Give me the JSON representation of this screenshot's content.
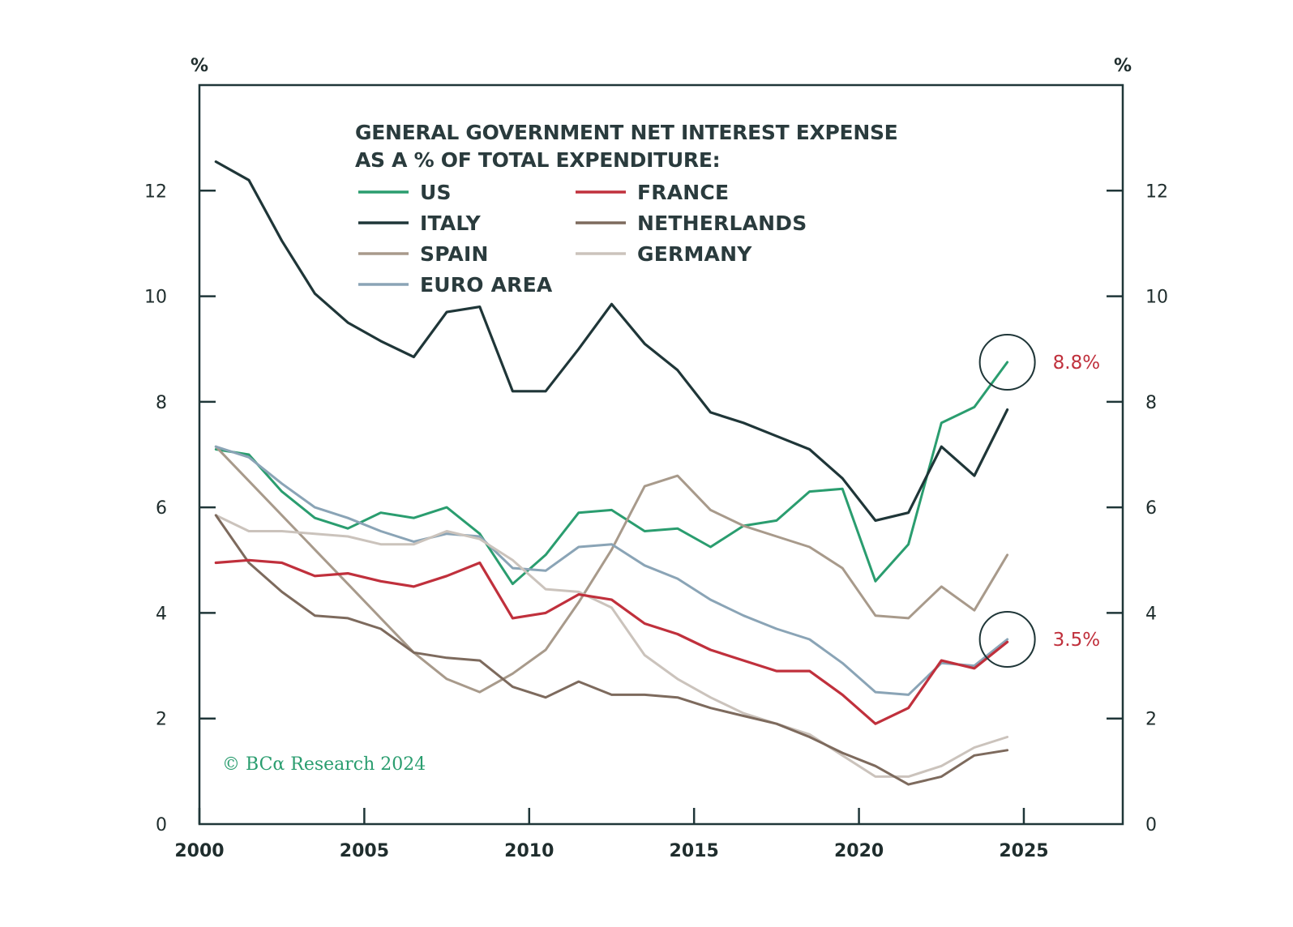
{
  "chart_data": {
    "type": "line",
    "title": [
      "GENERAL GOVERNMENT NET INTEREST EXPENSE",
      "AS A % OF TOTAL EXPENDITURE:"
    ],
    "ylabel_left": "%",
    "ylabel_right": "%",
    "xlim": [
      2000,
      2028
    ],
    "ylim": [
      0,
      14
    ],
    "xticks": [
      2000,
      2005,
      2010,
      2015,
      2020,
      2025
    ],
    "yticks": [
      0,
      2,
      4,
      6,
      8,
      10,
      12
    ],
    "x": [
      2000.5,
      2001.5,
      2002.5,
      2003.5,
      2004.5,
      2005.5,
      2006.5,
      2007.5,
      2008.5,
      2009.5,
      2010.5,
      2011.5,
      2012.5,
      2013.5,
      2014.5,
      2015.5,
      2016.5,
      2017.5,
      2018.5,
      2019.5,
      2020.5,
      2021.5,
      2022.5,
      2023.5,
      2024.5
    ],
    "series": [
      {
        "name": "US",
        "color": "#2a9d6f",
        "width": 3,
        "values": [
          7.1,
          7.0,
          6.3,
          5.8,
          5.6,
          5.9,
          5.8,
          6.0,
          5.5,
          4.55,
          5.1,
          5.9,
          5.95,
          5.55,
          5.6,
          5.25,
          5.65,
          5.75,
          6.3,
          6.35,
          4.6,
          5.3,
          7.6,
          7.9,
          8.75
        ]
      },
      {
        "name": "ITALY",
        "color": "#1f3638",
        "width": 3.2,
        "values": [
          12.55,
          12.2,
          11.05,
          10.05,
          9.5,
          9.15,
          8.85,
          9.7,
          9.8,
          8.2,
          8.2,
          9.0,
          9.85,
          9.1,
          8.6,
          7.8,
          7.6,
          7.35,
          7.1,
          6.55,
          5.75,
          5.9,
          7.15,
          6.6,
          7.85
        ]
      },
      {
        "name": "SPAIN",
        "color": "#a89a8b",
        "width": 3,
        "values": [
          7.15,
          6.5,
          5.85,
          5.2,
          4.55,
          3.9,
          3.25,
          2.75,
          2.5,
          2.85,
          3.3,
          4.2,
          5.2,
          6.4,
          6.6,
          5.95,
          5.65,
          5.45,
          5.25,
          4.85,
          3.95,
          3.9,
          4.5,
          4.05,
          5.1
        ]
      },
      {
        "name": "EURO AREA",
        "color": "#8aa4b6",
        "width": 3,
        "values": [
          7.15,
          6.95,
          6.45,
          6.0,
          5.8,
          5.55,
          5.35,
          5.5,
          5.45,
          4.85,
          4.8,
          5.25,
          5.3,
          4.9,
          4.65,
          4.25,
          3.95,
          3.7,
          3.5,
          3.05,
          2.5,
          2.45,
          3.05,
          3.0,
          3.5
        ]
      },
      {
        "name": "GERMANY",
        "color": "#cbc3bc",
        "width": 3,
        "values": [
          5.85,
          5.55,
          5.55,
          5.5,
          5.45,
          5.3,
          5.3,
          5.55,
          5.4,
          5.0,
          4.45,
          4.4,
          4.1,
          3.2,
          2.75,
          2.4,
          2.1,
          1.9,
          1.7,
          1.3,
          0.9,
          0.9,
          1.1,
          1.45,
          1.65
        ]
      },
      {
        "name": "NETHERLANDS",
        "color": "#7d6a5d",
        "width": 3,
        "values": [
          5.85,
          4.95,
          4.4,
          3.95,
          3.9,
          3.7,
          3.25,
          3.15,
          3.1,
          2.6,
          2.4,
          2.7,
          2.45,
          2.45,
          2.4,
          2.2,
          2.05,
          1.9,
          1.65,
          1.35,
          1.1,
          0.75,
          0.9,
          1.3,
          1.4
        ]
      },
      {
        "name": "FRANCE",
        "color": "#c0303c",
        "width": 3.2,
        "values": [
          4.95,
          5.0,
          4.95,
          4.7,
          4.75,
          4.6,
          4.5,
          4.7,
          4.95,
          3.9,
          4.0,
          4.35,
          4.25,
          3.8,
          3.6,
          3.3,
          3.1,
          2.9,
          2.9,
          2.45,
          1.9,
          2.2,
          3.1,
          2.95,
          3.45
        ]
      }
    ],
    "legend": {
      "placement": "top-left",
      "items": [
        {
          "name": "US",
          "color": "#2a9d6f"
        },
        {
          "name": "FRANCE",
          "color": "#c0303c"
        },
        {
          "name": "ITALY",
          "color": "#1f3638"
        },
        {
          "name": "NETHERLANDS",
          "color": "#7d6a5d"
        },
        {
          "name": "SPAIN",
          "color": "#a89a8b"
        },
        {
          "name": "GERMANY",
          "color": "#cbc3bc"
        },
        {
          "name": "EURO AREA",
          "color": "#8aa4b6"
        }
      ]
    },
    "annotations": [
      {
        "text": "8.8%",
        "x": 2024.5,
        "y": 8.75,
        "color": "#c0303c"
      },
      {
        "text": "3.5%",
        "x": 2024.5,
        "y": 3.5,
        "color": "#c0303c"
      }
    ],
    "copyright": "© BCα Research 2024",
    "copyright_color": "#2a9d6f",
    "axis_color": "#1f3638"
  }
}
